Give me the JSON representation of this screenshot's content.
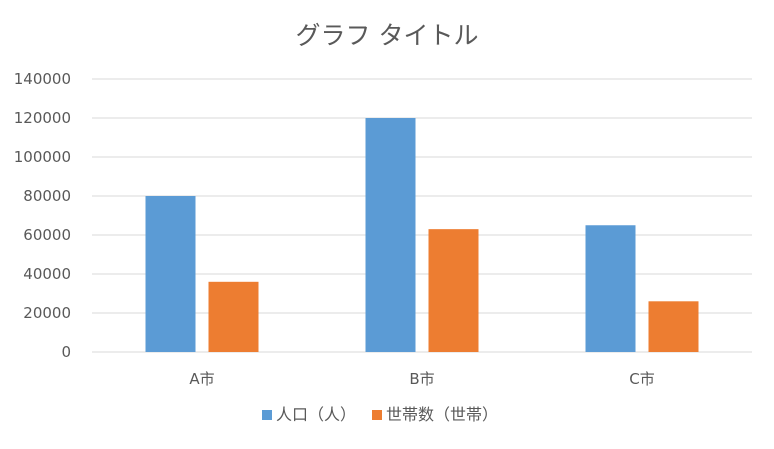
{
  "chart_data": {
    "type": "bar",
    "title": "グラフ タイトル",
    "xlabel": "",
    "ylabel": "",
    "categories": [
      "A市",
      "B市",
      "C市"
    ],
    "series": [
      {
        "name": "人口（人）",
        "values": [
          80000,
          120000,
          65000
        ],
        "color": "#5b9bd5"
      },
      {
        "name": "世帯数（世帯）",
        "values": [
          36000,
          63000,
          26000
        ],
        "color": "#ed7d31"
      }
    ],
    "ylim": [
      0,
      140000
    ],
    "yticks": [
      "0",
      "20000",
      "40000",
      "60000",
      "80000",
      "100000",
      "120000",
      "140000"
    ],
    "grid": true,
    "legend": "bottom"
  }
}
